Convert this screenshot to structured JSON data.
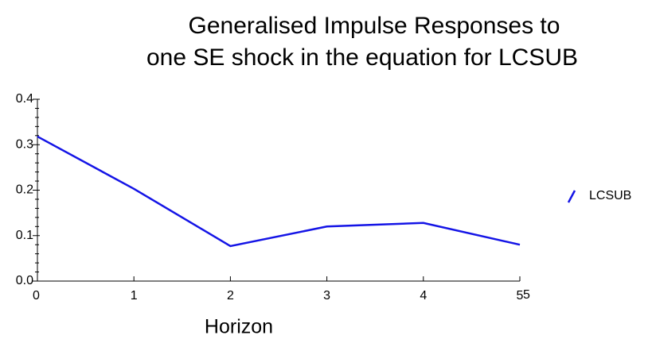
{
  "chart_data": {
    "type": "line",
    "title": [
      "Generalised Impulse Responses to",
      "one SE shock in the equation for LCSUB"
    ],
    "x_label": "Horizon",
    "x_end_label": "5",
    "x": [
      0,
      1,
      2,
      3,
      4,
      5
    ],
    "series": [
      {
        "name": "LCSUB",
        "color": "#1414e6",
        "values": [
          0.318,
          0.203,
          0.077,
          0.12,
          0.128,
          0.08
        ]
      }
    ],
    "xlim": [
      0,
      5
    ],
    "xticks": [
      0,
      1,
      2,
      3,
      4,
      5
    ],
    "ylim": [
      0,
      0.4
    ],
    "yticks": [
      {
        "value": 0,
        "label": "0.0"
      },
      0.1,
      0.2,
      0.3,
      0.4
    ],
    "legend": "right"
  }
}
